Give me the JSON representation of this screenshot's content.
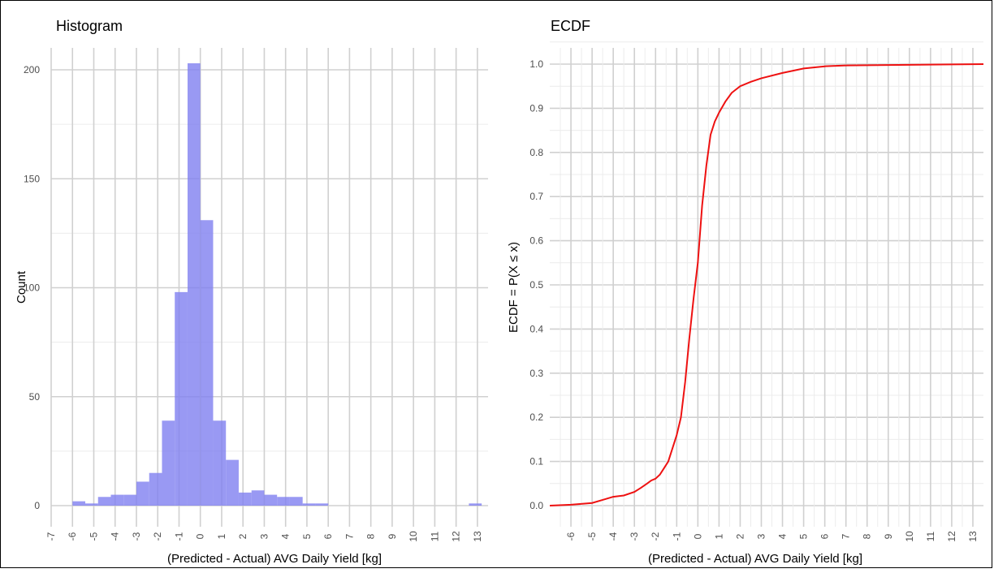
{
  "chart_data": [
    {
      "type": "bar",
      "title": "Histogram",
      "xlabel": "(Predicted - Actual) AVG Daily Yield [kg]",
      "ylabel": "Count",
      "xlim": [
        -7,
        13.5
      ],
      "ylim": [
        0,
        210
      ],
      "xticks": [
        -7,
        -6,
        -5,
        -4,
        -3,
        -2,
        -1,
        0,
        1,
        2,
        3,
        4,
        5,
        6,
        7,
        8,
        9,
        10,
        11,
        12,
        13
      ],
      "yticks": [
        0,
        50,
        100,
        150,
        200
      ],
      "grid": true,
      "bin_width": 0.6,
      "bars": [
        {
          "start": -6.0,
          "value": 2
        },
        {
          "start": -5.4,
          "value": 1
        },
        {
          "start": -4.8,
          "value": 4
        },
        {
          "start": -4.2,
          "value": 5
        },
        {
          "start": -3.6,
          "value": 5
        },
        {
          "start": -3.0,
          "value": 11
        },
        {
          "start": -2.4,
          "value": 15
        },
        {
          "start": -1.8,
          "value": 39
        },
        {
          "start": -1.2,
          "value": 98
        },
        {
          "start": -0.6,
          "value": 203
        },
        {
          "start": 0.0,
          "value": 131
        },
        {
          "start": 0.6,
          "value": 39
        },
        {
          "start": 1.2,
          "value": 21
        },
        {
          "start": 1.8,
          "value": 6
        },
        {
          "start": 2.4,
          "value": 7
        },
        {
          "start": 3.0,
          "value": 5
        },
        {
          "start": 3.6,
          "value": 4
        },
        {
          "start": 4.2,
          "value": 4
        },
        {
          "start": 4.8,
          "value": 1
        },
        {
          "start": 5.4,
          "value": 1
        },
        {
          "start": 12.6,
          "value": 1
        }
      ],
      "color": "#8080f0"
    },
    {
      "type": "line",
      "title": "ECDF",
      "xlabel": "(Predicted - Actual) AVG Daily Yield [kg]",
      "ylabel": "ECDF = P(X ≤ x)",
      "xlim": [
        -7,
        13.5
      ],
      "ylim": [
        0,
        1
      ],
      "xticks": [
        -6,
        -5,
        -4,
        -3,
        -2,
        -1,
        0,
        1,
        2,
        3,
        4,
        5,
        6,
        7,
        8,
        9,
        10,
        11,
        12,
        13
      ],
      "yticks": [
        0.0,
        0.1,
        0.2,
        0.3,
        0.4,
        0.5,
        0.6,
        0.7,
        0.8,
        0.9,
        1.0
      ],
      "ytick_labels": [
        "0.0",
        "0.1",
        "0.2",
        "0.3",
        "0.4",
        "0.5",
        "0.6",
        "0.7",
        "0.8",
        "0.9",
        "1.0"
      ],
      "grid": true,
      "color": "#ee1111",
      "x": [
        -7.0,
        -6.0,
        -5.0,
        -4.5,
        -4.0,
        -3.5,
        -3.0,
        -2.7,
        -2.4,
        -2.2,
        -2.0,
        -1.8,
        -1.6,
        -1.4,
        -1.2,
        -1.0,
        -0.8,
        -0.6,
        -0.4,
        -0.2,
        0.0,
        0.2,
        0.4,
        0.6,
        0.8,
        1.0,
        1.3,
        1.6,
        2.0,
        2.5,
        3.0,
        4.0,
        5.0,
        6.0,
        7.0,
        13.5
      ],
      "y": [
        0.0,
        0.002,
        0.006,
        0.013,
        0.02,
        0.023,
        0.031,
        0.04,
        0.05,
        0.057,
        0.061,
        0.07,
        0.085,
        0.1,
        0.13,
        0.16,
        0.2,
        0.28,
        0.38,
        0.47,
        0.55,
        0.68,
        0.77,
        0.84,
        0.87,
        0.89,
        0.915,
        0.935,
        0.95,
        0.96,
        0.968,
        0.98,
        0.99,
        0.995,
        0.997,
        1.0
      ]
    }
  ]
}
